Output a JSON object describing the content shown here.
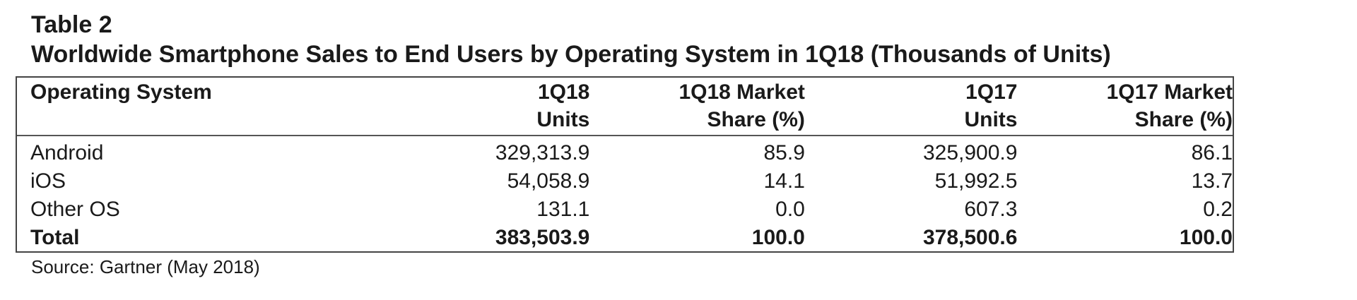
{
  "title": {
    "line1": "Table 2",
    "line2": "Worldwide Smartphone Sales to End Users by Operating System in 1Q18 (Thousands of Units)"
  },
  "table": {
    "headers": [
      {
        "line1": "Operating System",
        "line2": ""
      },
      {
        "line1": "1Q18",
        "line2": "Units"
      },
      {
        "line1": "1Q18 Market",
        "line2": "Share (%)"
      },
      {
        "line1": "1Q17",
        "line2": "Units"
      },
      {
        "line1": "1Q17 Market",
        "line2": "Share (%)"
      }
    ],
    "rows": [
      [
        "Android",
        "329,313.9",
        "85.9",
        "325,900.9",
        "86.1"
      ],
      [
        "iOS",
        "54,058.9",
        "14.1",
        "51,992.5",
        "13.7"
      ],
      [
        "Other OS",
        "131.1",
        "0.0",
        "607.3",
        "0.2"
      ],
      [
        "Total",
        "383,503.9",
        "100.0",
        "378,500.6",
        "100.0"
      ]
    ]
  },
  "source": "Source: Gartner (May 2018)"
}
